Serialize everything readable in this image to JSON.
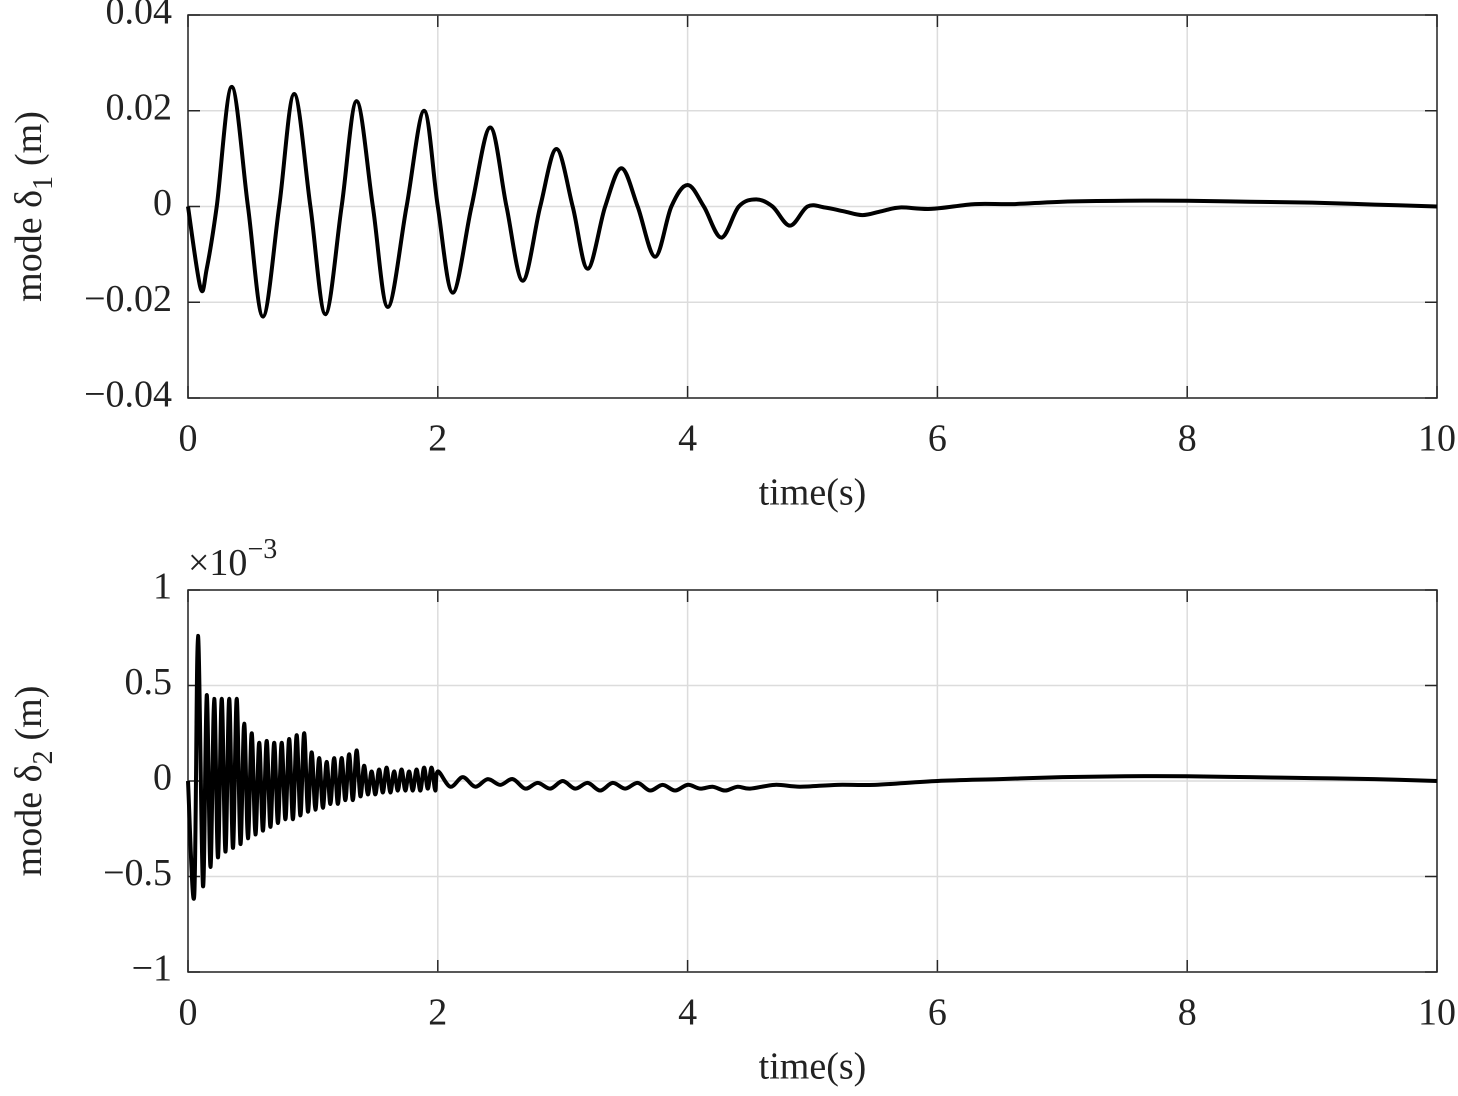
{
  "chart_data": [
    {
      "type": "line",
      "ylabel": {
        "text": "mode δ",
        "subscript": "1",
        "suffix": "(m)"
      },
      "xlabel": "time(s)",
      "xlim": [
        0,
        10
      ],
      "xticks": [
        0,
        2,
        4,
        6,
        8,
        10
      ],
      "ylim": [
        -0.04,
        0.04
      ],
      "yticks": [
        {
          "value": -0.04,
          "label": "−0.04"
        },
        {
          "value": -0.02,
          "label": "−0.02"
        },
        0,
        0.02,
        0.04
      ],
      "grid": true,
      "series": [
        {
          "color": "#000000",
          "x": [
            0,
            0.1,
            0.15,
            0.23,
            0.35,
            0.48,
            0.6,
            0.73,
            0.85,
            0.98,
            1.1,
            1.23,
            1.35,
            1.48,
            1.6,
            1.75,
            1.89,
            2.0,
            2.12,
            2.27,
            2.42,
            2.55,
            2.68,
            2.82,
            2.95,
            3.08,
            3.2,
            3.34,
            3.47,
            3.6,
            3.74,
            3.87,
            4.0,
            4.13,
            4.27,
            4.41,
            4.55,
            4.68,
            4.82,
            4.96,
            5.1,
            5.25,
            5.4,
            5.55,
            5.7,
            5.95,
            6.3,
            6.6,
            7,
            7.5,
            8,
            8.5,
            9,
            9.5,
            10
          ],
          "values": [
            0,
            -0.017,
            -0.013,
            0,
            0.025,
            0,
            -0.023,
            0,
            0.0235,
            0,
            -0.0225,
            0,
            0.022,
            0,
            -0.021,
            0,
            0.02,
            0,
            -0.018,
            0,
            0.0165,
            0,
            -0.0155,
            0,
            0.012,
            0,
            -0.013,
            0,
            0.008,
            0,
            -0.0105,
            0,
            0.0045,
            0,
            -0.0065,
            0,
            0.0015,
            0,
            -0.004,
            0,
            -0.0002,
            -0.001,
            -0.0018,
            -0.001,
            -0.0002,
            -0.0005,
            0.0005,
            0.0005,
            0.001,
            0.0012,
            0.0012,
            0.001,
            0.0008,
            0.0004,
            0
          ]
        }
      ]
    },
    {
      "type": "line",
      "ylabel": {
        "text": "mode δ",
        "subscript": "2",
        "suffix": "(m)"
      },
      "xlabel": "time(s)",
      "multiplier": {
        "text": "×10",
        "exponent": "−3"
      },
      "xlim": [
        0,
        10
      ],
      "xticks": [
        0,
        2,
        4,
        6,
        8,
        10
      ],
      "ylim": [
        -1,
        1
      ],
      "yticks": [
        {
          "value": -1,
          "label": "−1"
        },
        {
          "value": -0.5,
          "label": "−0.5"
        },
        0,
        0.5,
        1
      ],
      "grid": true,
      "series": [
        {
          "color": "#000000",
          "x": [
            0,
            0.05,
            0.08,
            0.12,
            0.15,
            0.18,
            0.21,
            0.24,
            0.27,
            0.3,
            0.33,
            0.36,
            0.39,
            0.42,
            0.45,
            0.48,
            0.51,
            0.54,
            0.57,
            0.6,
            0.63,
            0.66,
            0.69,
            0.72,
            0.75,
            0.78,
            0.81,
            0.84,
            0.87,
            0.9,
            0.93,
            0.96,
            0.99,
            1.02,
            1.05,
            1.08,
            1.11,
            1.14,
            1.17,
            1.2,
            1.23,
            1.26,
            1.29,
            1.32,
            1.35,
            1.38,
            1.41,
            1.44,
            1.47,
            1.5,
            1.53,
            1.56,
            1.59,
            1.62,
            1.65,
            1.68,
            1.71,
            1.74,
            1.77,
            1.8,
            1.83,
            1.86,
            1.89,
            1.92,
            1.95,
            1.98,
            2.0,
            2.1,
            2.2,
            2.3,
            2.4,
            2.5,
            2.6,
            2.7,
            2.8,
            2.9,
            3.0,
            3.1,
            3.2,
            3.3,
            3.4,
            3.5,
            3.6,
            3.7,
            3.8,
            3.9,
            4.0,
            4.1,
            4.2,
            4.3,
            4.4,
            4.5,
            4.7,
            4.9,
            5.2,
            5.5,
            6,
            6.5,
            7,
            7.5,
            8,
            8.5,
            9,
            9.5,
            10
          ],
          "values": [
            0,
            -0.6,
            0.76,
            -0.55,
            0.45,
            -0.45,
            0.43,
            -0.4,
            0.43,
            -0.37,
            0.43,
            -0.35,
            0.43,
            -0.33,
            0.3,
            -0.3,
            0.25,
            -0.28,
            0.2,
            -0.26,
            0.21,
            -0.24,
            0.2,
            -0.22,
            0.2,
            -0.2,
            0.22,
            -0.2,
            0.24,
            -0.18,
            0.25,
            -0.16,
            0.15,
            -0.15,
            0.12,
            -0.14,
            0.1,
            -0.12,
            0.12,
            -0.12,
            0.12,
            -0.1,
            0.14,
            -0.1,
            0.16,
            -0.08,
            0.08,
            -0.07,
            0.05,
            -0.07,
            0.06,
            -0.06,
            0.07,
            -0.06,
            0.05,
            -0.05,
            0.06,
            -0.05,
            0.05,
            -0.05,
            0.06,
            -0.05,
            0.07,
            -0.04,
            0.07,
            -0.05,
            0.05,
            -0.03,
            0.02,
            -0.03,
            0.01,
            -0.02,
            0.01,
            -0.04,
            -0.01,
            -0.04,
            0,
            -0.04,
            -0.01,
            -0.05,
            -0.01,
            -0.04,
            -0.01,
            -0.05,
            -0.02,
            -0.05,
            -0.02,
            -0.04,
            -0.03,
            -0.05,
            -0.03,
            -0.04,
            -0.02,
            -0.03,
            -0.02,
            -0.02,
            0,
            0.01,
            0.02,
            0.025,
            0.025,
            0.02,
            0.015,
            0.01,
            0
          ]
        }
      ]
    }
  ]
}
